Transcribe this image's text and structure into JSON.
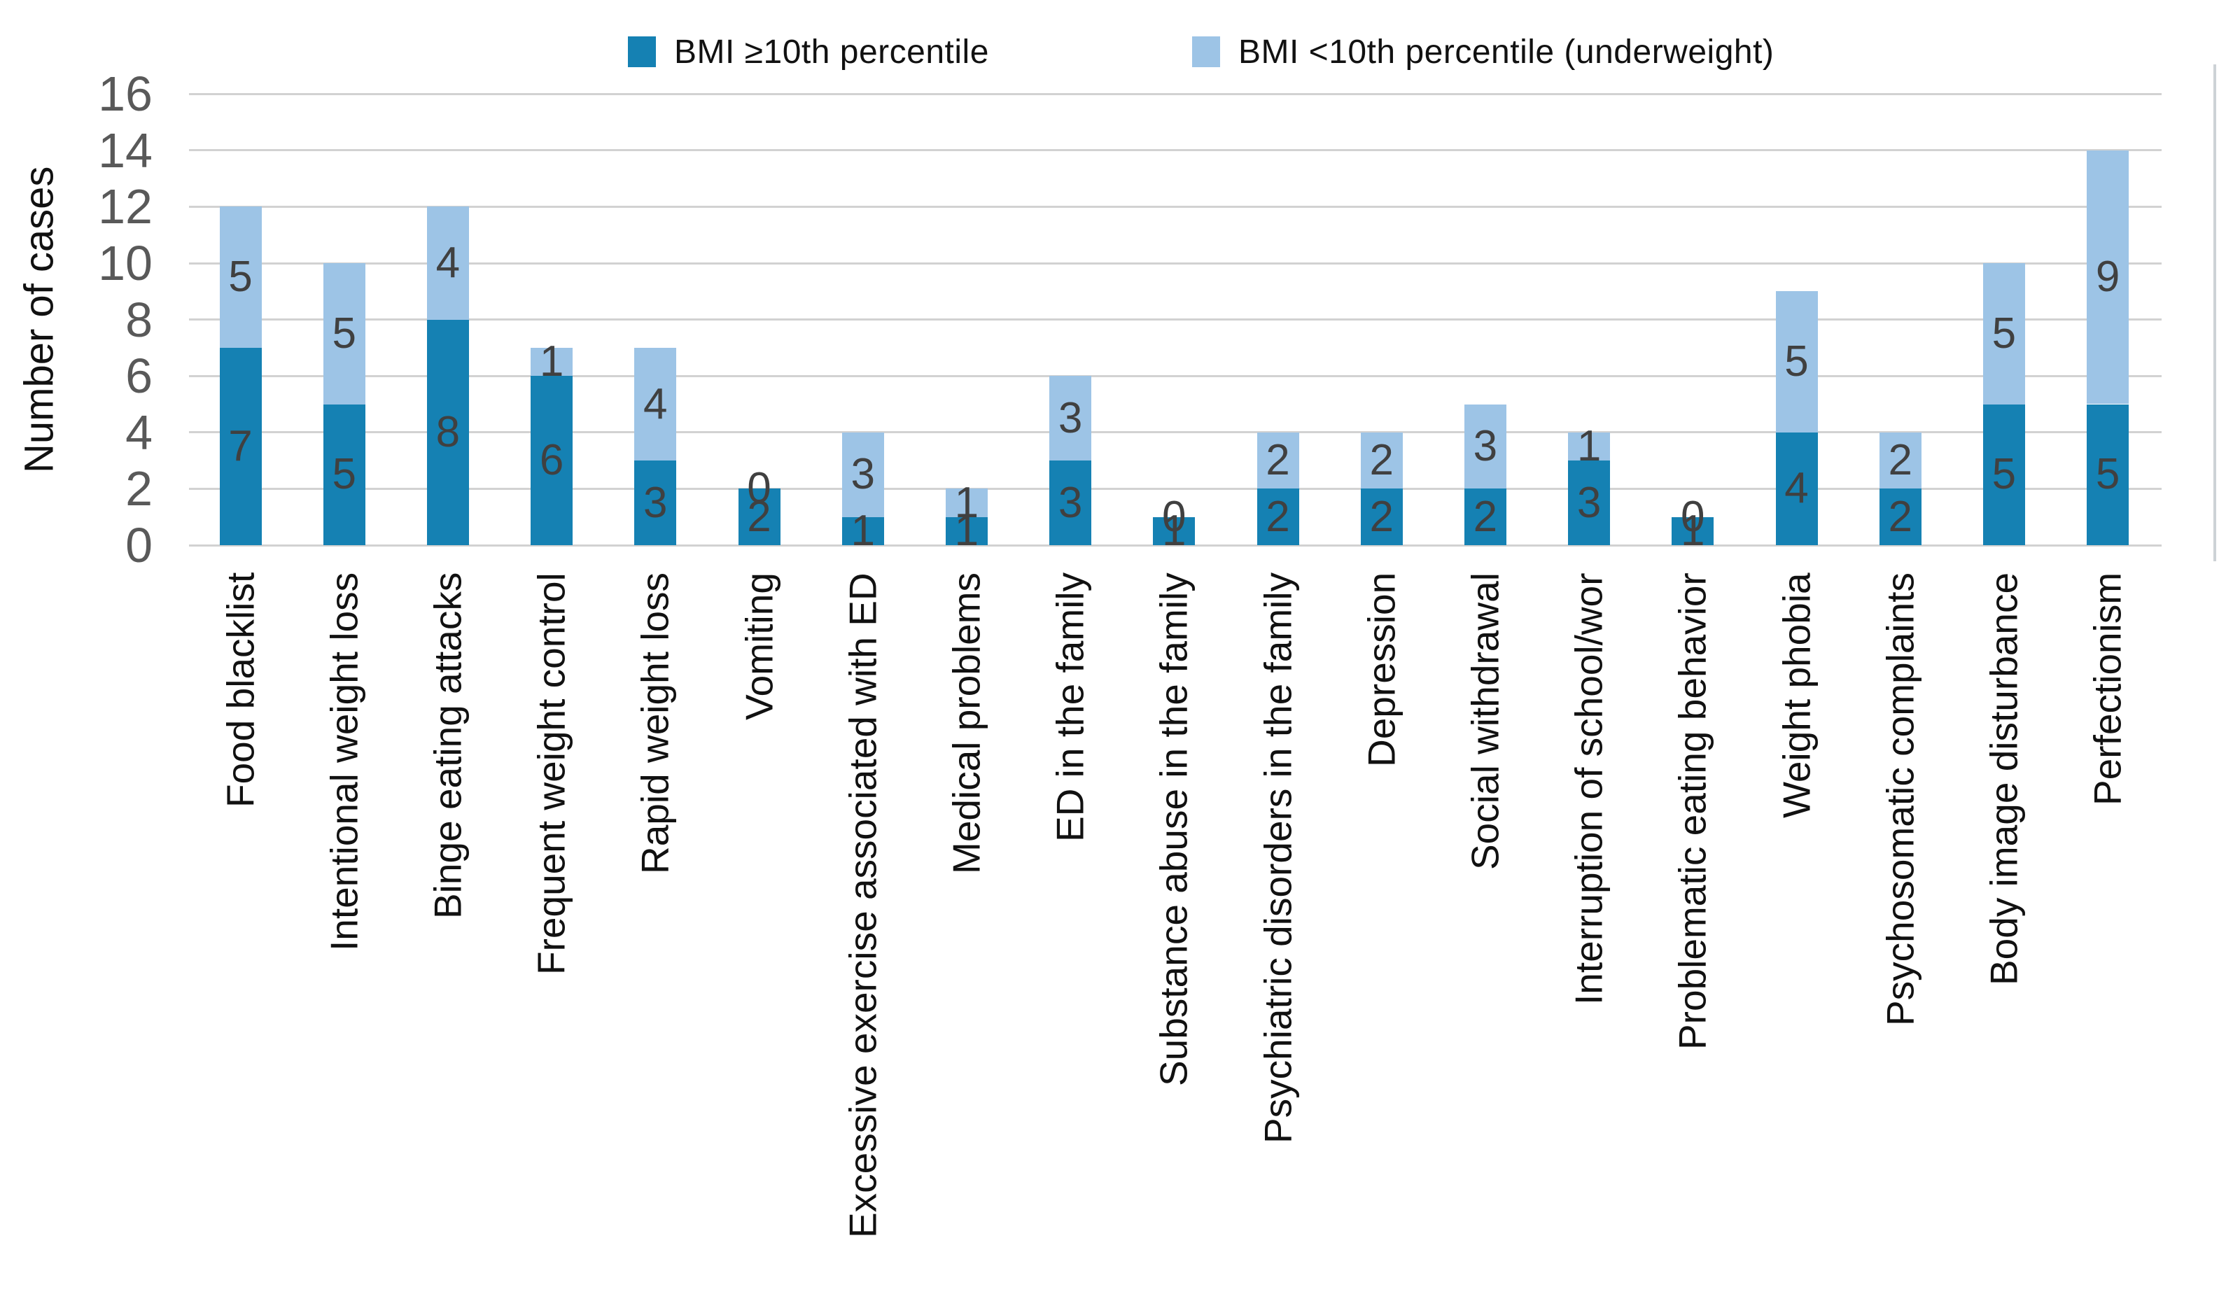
{
  "chart_data": {
    "type": "bar",
    "stacked": true,
    "title": "",
    "ylabel": "Number of cases",
    "yticks": [
      0,
      2,
      4,
      6,
      8,
      10,
      12,
      14,
      16
    ],
    "ylim": [
      0,
      16
    ],
    "grid": true,
    "legend_position": "top",
    "value_labels": true,
    "categories": [
      "Food blacklist",
      "Intentional weight loss",
      "Binge eating attacks",
      "Frequent weight control",
      "Rapid weight loss",
      "Vomiting",
      "Excessive exercise associated with ED",
      "Medical problems",
      "ED in the family",
      "Substance abuse in the family",
      "Psychiatric disorders in the family",
      "Depression",
      "Social withdrawal",
      "Interruption of school/wor",
      "Problematic eating behavior",
      "Weight phobia",
      "Psychosomatic complaints",
      "Body image disturbance",
      "Perfectionism"
    ],
    "series": [
      {
        "name": "BMI ≥10th percentile",
        "color": "#1581B3",
        "values": [
          7,
          5,
          8,
          6,
          3,
          2,
          1,
          1,
          3,
          1,
          2,
          2,
          2,
          3,
          1,
          4,
          2,
          5,
          5
        ]
      },
      {
        "name": "BMI <10th percentile (underweight)",
        "color": "#9DC4E6",
        "values": [
          5,
          5,
          4,
          1,
          4,
          0,
          3,
          1,
          3,
          0,
          2,
          2,
          3,
          1,
          0,
          5,
          2,
          5,
          9
        ]
      }
    ],
    "totals": [
      12,
      10,
      12,
      7,
      7,
      2,
      4,
      2,
      6,
      1,
      4,
      4,
      5,
      4,
      1,
      9,
      4,
      10,
      14
    ]
  },
  "colors": {
    "gridline": "#d2d2d2",
    "tick_text": "#595959",
    "value_text": "#404040",
    "label_text": "#111111"
  }
}
